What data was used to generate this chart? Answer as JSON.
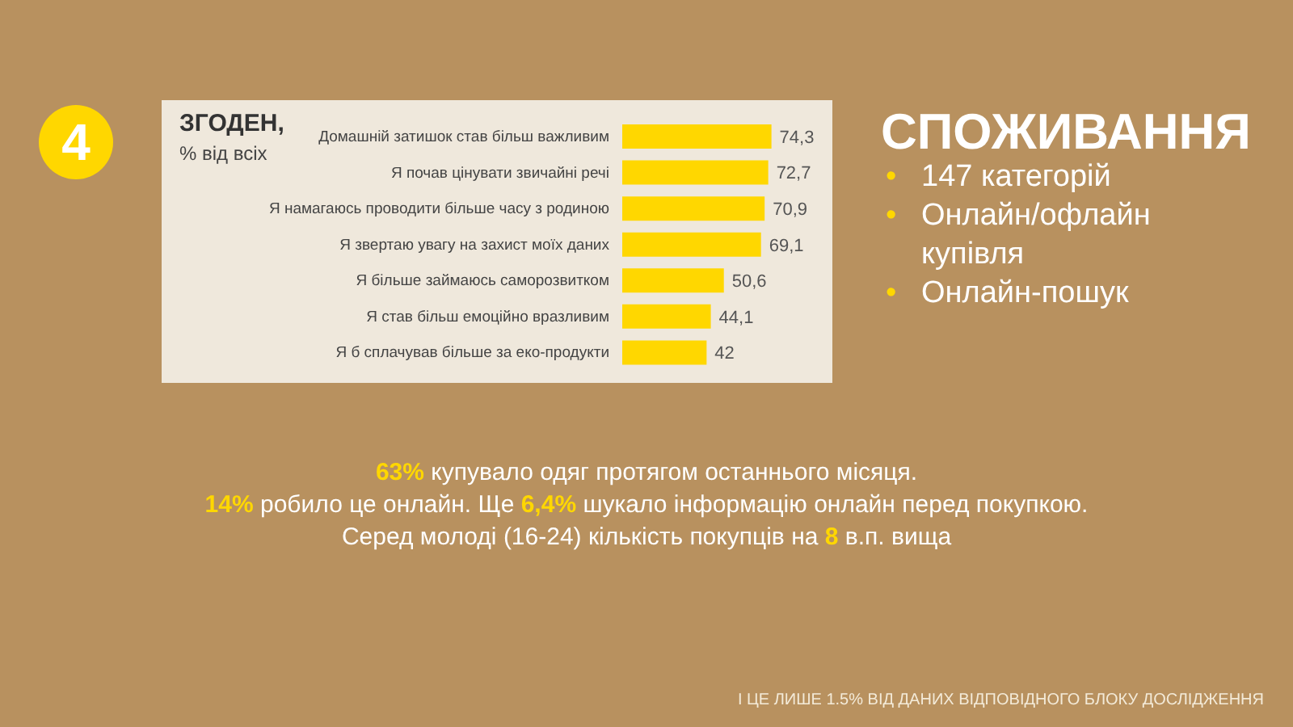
{
  "chart_data": {
    "type": "bar",
    "orientation": "horizontal",
    "title": "ЗГОДЕН,",
    "subtitle": "% від всіх",
    "categories": [
      "Домашній затишок став більш важливим",
      "Я почав цінувати звичайні речі",
      "Я намагаюсь проводити більше часу з родиною",
      "Я звертаю увагу на захист моїх даних",
      "Я більше займаюсь саморозвитком",
      "Я став більш емоційно вразливим",
      "Я б сплачував більше за еко-продукти"
    ],
    "values": [
      74.3,
      72.7,
      70.9,
      69.1,
      50.6,
      44.1,
      42
    ],
    "value_labels": [
      "74,3",
      "72,7",
      "70,9",
      "69,1",
      "50,6",
      "44,1",
      "42"
    ],
    "color": "#ffd700",
    "grid": false,
    "legend": false,
    "annotations": [
      "4",
      "СПОЖИВАННЯ",
      "• 147 категорій",
      "• Онлайн/офлайн купівля",
      "• Онлайн-пошук",
      "63% купувало одяг протягом останнього місяця.",
      "14% робило це онлайн. Ще 6,4% шукало інформацію онлайн перед покупкою.",
      "Серед молоді (16-24) кількість покупців на 8 в.п. вища",
      "І ЦЕ ЛИШЕ 1.5% ВІД ДАНИХ ВІДПОВІДНОГО  БЛОКУ ДОСЛІДЖЕННЯ"
    ]
  }
}
